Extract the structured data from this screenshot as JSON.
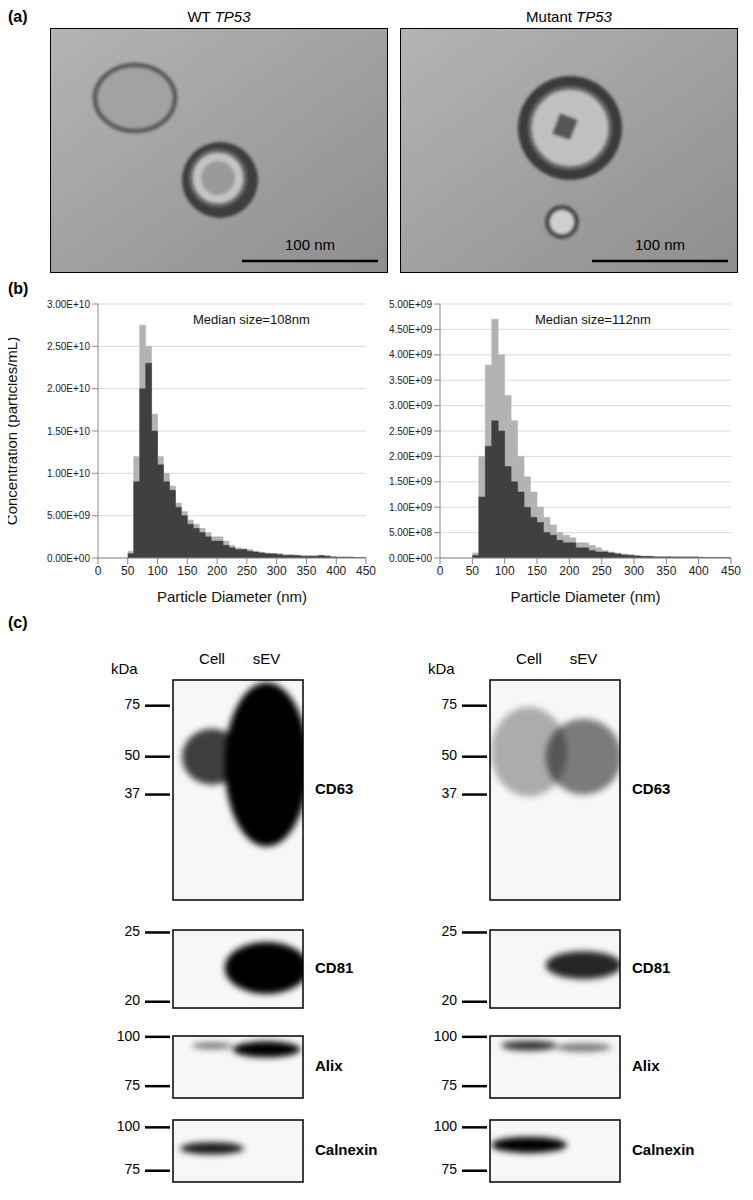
{
  "panel_labels": [
    "(a)",
    "(b)",
    "(c)"
  ],
  "panel_a": {
    "images": [
      {
        "title": "WT TP53",
        "scale_bar": "100 nm"
      },
      {
        "title": "Mutant TP53",
        "scale_bar": "100 nm"
      }
    ]
  },
  "chart_data": [
    {
      "type": "histogram",
      "annotation": "Median size=108nm",
      "x_label": "Particle Diameter (nm)",
      "y_label": "Concentration (particles/mL)",
      "bins": [
        50,
        60,
        70,
        80,
        90,
        100,
        110,
        120,
        130,
        140,
        150,
        160,
        170,
        180,
        190,
        200,
        210,
        220,
        230,
        240,
        250,
        260,
        270,
        280,
        290,
        300,
        310,
        320,
        330,
        340,
        350,
        360,
        370,
        380,
        390,
        400,
        410,
        420,
        430,
        440,
        450
      ],
      "series": [
        {
          "color": "#b3b3b3",
          "values": [
            800000000.0,
            12000000000.0,
            27500000000.0,
            25000000000.0,
            17000000000.0,
            12000000000.0,
            10000000000.0,
            8500000000.0,
            6500000000.0,
            5500000000.0,
            4500000000.0,
            4000000000.0,
            3500000000.0,
            3000000000.0,
            2500000000.0,
            2500000000.0,
            2000000000.0,
            1500000000.0,
            1200000000.0,
            1100000000.0,
            1000000000.0,
            800000000.0,
            700000000.0,
            600000000.0,
            500000000.0,
            500000000.0,
            400000000.0,
            400000000.0,
            300000000.0,
            300000000.0,
            300000000.0,
            300000000.0,
            300000000.0,
            300000000.0,
            200000000.0,
            100000000.0,
            100000000.0,
            100000000.0,
            50000000.0,
            50000000.0
          ]
        },
        {
          "color": "#404040",
          "values": [
            500000000.0,
            9000000000.0,
            20000000000.0,
            23000000000.0,
            15000000000.0,
            11000000000.0,
            9000000000.0,
            8000000000.0,
            6000000000.0,
            5000000000.0,
            4000000000.0,
            3500000000.0,
            3000000000.0,
            2500000000.0,
            2000000000.0,
            2000000000.0,
            1500000000.0,
            1200000000.0,
            1000000000.0,
            1000000000.0,
            800000000.0,
            700000000.0,
            600000000.0,
            500000000.0,
            500000000.0,
            400000000.0,
            300000000.0,
            300000000.0,
            300000000.0,
            200000000.0,
            200000000.0,
            200000000.0,
            300000000.0,
            200000000.0,
            100000000.0,
            100000000.0,
            100000000.0,
            100000000.0,
            50000000.0,
            50000000.0
          ]
        }
      ],
      "xlim": [
        0,
        450
      ],
      "xticks": [
        0,
        50,
        100,
        150,
        200,
        250,
        300,
        350,
        400,
        450
      ],
      "ylim": [
        0,
        30000000000.0
      ],
      "yticks": [
        {
          "value": 0,
          "label": "0.00E+00"
        },
        {
          "value": 5000000000.0,
          "label": "5.00E+09"
        },
        {
          "value": 10000000000.0,
          "label": "1.00E+10"
        },
        {
          "value": 15000000000.0,
          "label": "1.50E+10"
        },
        {
          "value": 20000000000.0,
          "label": "2.00E+10"
        },
        {
          "value": 25000000000.0,
          "label": "2.50E+10"
        },
        {
          "value": 30000000000.0,
          "label": "3.00E+10"
        }
      ],
      "grid": true
    },
    {
      "type": "histogram",
      "annotation": "Median size=112nm",
      "x_label": "Particle Diameter (nm)",
      "bins": [
        50,
        60,
        70,
        80,
        90,
        100,
        110,
        120,
        130,
        140,
        150,
        160,
        170,
        180,
        190,
        200,
        210,
        220,
        230,
        240,
        250,
        260,
        270,
        280,
        290,
        300,
        310,
        320,
        330,
        340,
        350,
        360,
        370,
        380,
        390,
        400,
        410,
        420,
        430,
        440,
        450
      ],
      "series": [
        {
          "color": "#b3b3b3",
          "values": [
            100000000.0,
            2000000000.0,
            3800000000.0,
            4700000000.0,
            4000000000.0,
            3200000000.0,
            2700000000.0,
            2000000000.0,
            1600000000.0,
            1300000000.0,
            1000000000.0,
            800000000.0,
            650000000.0,
            500000000.0,
            450000000.0,
            400000000.0,
            300000000.0,
            300000000.0,
            250000000.0,
            200000000.0,
            150000000.0,
            120000000.0,
            100000000.0,
            80000000.0,
            70000000.0,
            50000000.0,
            40000000.0,
            40000000.0,
            30000000.0,
            30000000.0,
            30000000.0,
            20000000.0,
            20000000.0,
            20000000.0,
            20000000.0,
            20000000.0,
            10000000.0,
            10000000.0,
            10000000.0,
            10000000.0
          ]
        },
        {
          "color": "#404040",
          "values": [
            50000000.0,
            1200000000.0,
            2200000000.0,
            2700000000.0,
            2500000000.0,
            1800000000.0,
            1500000000.0,
            1300000000.0,
            1000000000.0,
            800000000.0,
            700000000.0,
            500000000.0,
            450000000.0,
            350000000.0,
            300000000.0,
            300000000.0,
            200000000.0,
            200000000.0,
            150000000.0,
            120000000.0,
            120000000.0,
            100000000.0,
            80000000.0,
            60000000.0,
            50000000.0,
            40000000.0,
            30000000.0,
            30000000.0,
            20000000.0,
            20000000.0,
            20000000.0,
            20000000.0,
            20000000.0,
            20000000.0,
            20000000.0,
            10000000.0,
            10000000.0,
            10000000.0,
            10000000.0,
            10000000.0
          ]
        }
      ],
      "xlim": [
        0,
        450
      ],
      "xticks": [
        0,
        50,
        100,
        150,
        200,
        250,
        300,
        350,
        400,
        450
      ],
      "ylim": [
        0,
        5000000000.0
      ],
      "yticks": [
        {
          "value": 0,
          "label": "0.00E+00"
        },
        {
          "value": 500000000.0,
          "label": "5.00E+08"
        },
        {
          "value": 1000000000.0,
          "label": "1.00E+09"
        },
        {
          "value": 1500000000.0,
          "label": "1.50E+09"
        },
        {
          "value": 2000000000.0,
          "label": "2.00E+09"
        },
        {
          "value": 2500000000.0,
          "label": "2.50E+09"
        },
        {
          "value": 3000000000.0,
          "label": "3.00E+09"
        },
        {
          "value": 3500000000.0,
          "label": "3.50E+09"
        },
        {
          "value": 4000000000.0,
          "label": "4.00E+09"
        },
        {
          "value": 4500000000.0,
          "label": "4.50E+09"
        },
        {
          "value": 5000000000.0,
          "label": "5.00E+09"
        }
      ],
      "grid": true
    }
  ],
  "panel_c": {
    "panels": [
      {
        "unit": "kDa",
        "lanes": [
          "Cell",
          "sEV"
        ],
        "blots": [
          {
            "protein": "CD63",
            "markers": [
              75,
              50,
              37
            ]
          },
          {
            "protein": "CD81",
            "markers": [
              25,
              20
            ]
          },
          {
            "protein": "Alix",
            "markers": [
              100,
              75
            ]
          },
          {
            "protein": "Calnexin",
            "markers": [
              100,
              75
            ]
          }
        ]
      },
      {
        "unit": "kDa",
        "lanes": [
          "Cell",
          "sEV"
        ],
        "blots": [
          {
            "protein": "CD63",
            "markers": [
              75,
              50,
              37
            ]
          },
          {
            "protein": "CD81",
            "markers": [
              25,
              20
            ]
          },
          {
            "protein": "Alix",
            "markers": [
              100,
              75
            ]
          },
          {
            "protein": "Calnexin",
            "markers": [
              100,
              75
            ]
          }
        ]
      }
    ]
  }
}
